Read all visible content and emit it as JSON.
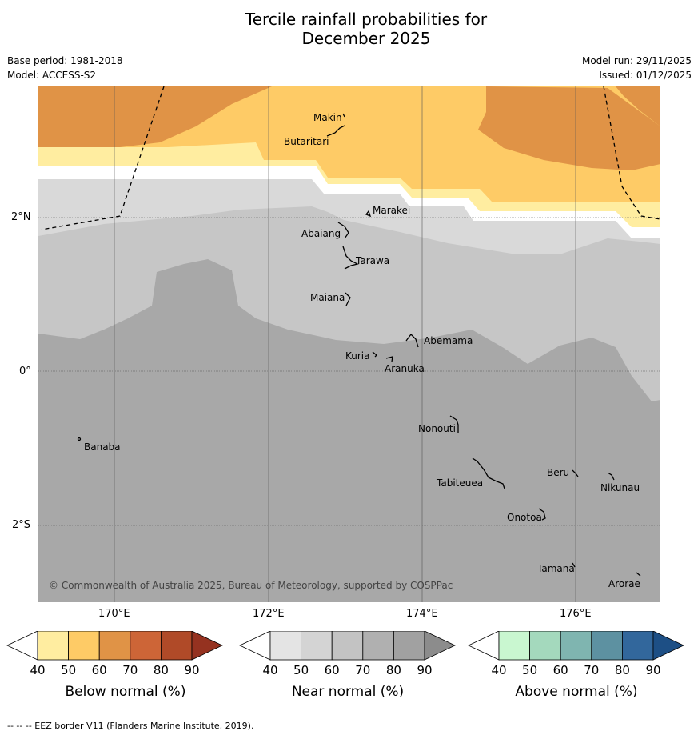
{
  "header": {
    "title_line1": "Tercile rainfall probabilities for",
    "title_line2": "December 2025",
    "base_period": "Base period: 1981-2018",
    "model": "Model: ACCESS-S2",
    "model_run": "Model run: 29/11/2025",
    "issued": "Issued: 01/12/2025"
  },
  "map": {
    "copyright": "© Commonwealth of Australia 2025, Bureau of Meteorology, supported by COSPPac",
    "lat_ticks": [
      "2°N",
      "0°",
      "2°S"
    ],
    "lon_ticks": [
      "170°E",
      "172°E",
      "174°E",
      "176°E"
    ],
    "place_labels": [
      "Makin",
      "Butaritari",
      "Marakei",
      "Abaiang",
      "Tarawa",
      "Maiana",
      "Abemama",
      "Kuria",
      "Aranuka",
      "Nonouti",
      "Banaba",
      "Beru",
      "Nikunau",
      "Tabiteuea",
      "Onotoa",
      "Tamana",
      "Arorae"
    ]
  },
  "colors": {
    "below_50": "#ffeb9e",
    "below_60": "#fecb66",
    "below_70": "#e09346",
    "near_50": "#d9d9d9",
    "near_60": "#c6c6c6",
    "near_70": "#a8a8a8"
  },
  "legends": [
    {
      "label": "Below normal (%)",
      "ticks": [
        "40",
        "50",
        "60",
        "70",
        "80",
        "90"
      ],
      "colors": [
        "#ffeda0",
        "#fecb66",
        "#e09346",
        "#cd6537",
        "#b04a28",
        "#953220"
      ]
    },
    {
      "label": "Near normal (%)",
      "ticks": [
        "40",
        "50",
        "60",
        "70",
        "80",
        "90"
      ],
      "colors": [
        "#e4e4e4",
        "#d4d4d4",
        "#c3c3c3",
        "#b0b0b0",
        "#a1a1a1",
        "#8c8c8c"
      ]
    },
    {
      "label": "Above normal (%)",
      "ticks": [
        "40",
        "50",
        "60",
        "70",
        "80",
        "90"
      ],
      "colors": [
        "#c9f7d0",
        "#a4d9bd",
        "#7fb5b0",
        "#5d91a1",
        "#32679c",
        "#1d4f85"
      ]
    }
  ],
  "footer": "-- -- -- EEZ border V11 (Flanders Marine Institute, 2019)."
}
